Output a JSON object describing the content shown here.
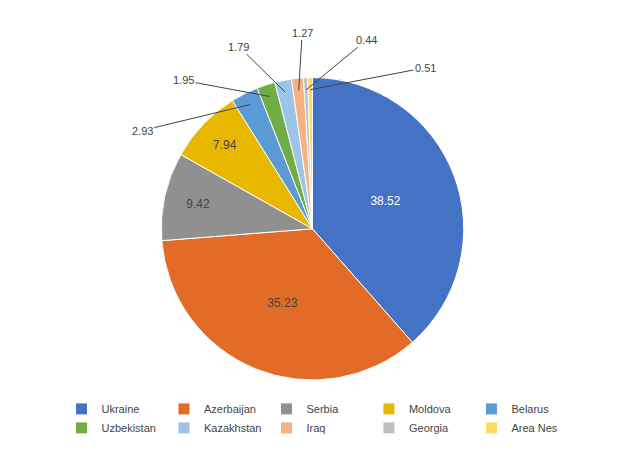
{
  "chart_data": {
    "type": "pie",
    "categories": [
      "Ukraine",
      "Azerbaijan",
      "Serbia",
      "Moldova",
      "Belarus",
      "Uzbekistan",
      "Kazakhstan",
      "Iraq",
      "Georgia",
      "Area Nes"
    ],
    "values": [
      38.52,
      35.23,
      9.42,
      7.94,
      2.93,
      1.95,
      1.79,
      1.27,
      0.44,
      0.51
    ],
    "colors": [
      "#4472C4",
      "#E26B28",
      "#909090",
      "#E8B800",
      "#5B9BD5",
      "#70AD47",
      "#9DC3E6",
      "#F4B183",
      "#BFBFBF",
      "#FFD966"
    ],
    "data_labels": true,
    "legend": "bottom"
  }
}
